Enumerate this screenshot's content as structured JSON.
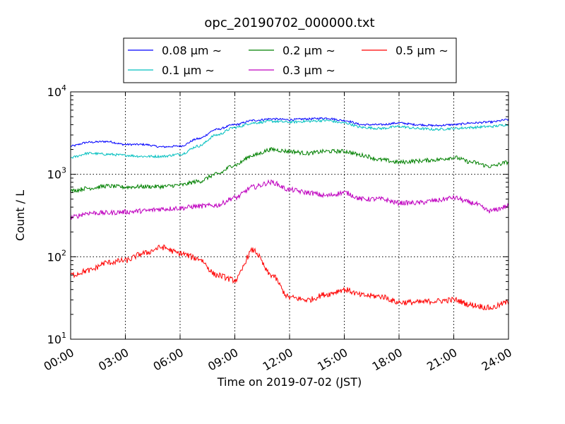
{
  "chart_data": {
    "type": "line",
    "title": "opc_20190702_000000.txt",
    "xlabel": "Time on 2019-07-02 (JST)",
    "ylabel": "Count / L",
    "yscale": "log",
    "ylim": [
      10,
      10000
    ],
    "xlim": [
      "00:00",
      "24:00"
    ],
    "grid": true,
    "legend_placement": "top",
    "x_ticks": [
      "00:00",
      "03:00",
      "06:00",
      "09:00",
      "12:00",
      "15:00",
      "18:00",
      "21:00",
      "24:00"
    ],
    "y_ticks": [
      {
        "base": "10",
        "exp": "1"
      },
      {
        "base": "10",
        "exp": "2"
      },
      {
        "base": "10",
        "exp": "3"
      },
      {
        "base": "10",
        "exp": "4"
      }
    ],
    "x": [
      "00:00",
      "01:00",
      "02:00",
      "03:00",
      "04:00",
      "05:00",
      "06:00",
      "07:00",
      "08:00",
      "09:00",
      "10:00",
      "11:00",
      "12:00",
      "13:00",
      "14:00",
      "15:00",
      "16:00",
      "17:00",
      "18:00",
      "19:00",
      "20:00",
      "21:00",
      "22:00",
      "23:00",
      "24:00"
    ],
    "series": [
      {
        "name": "0.08 μm ∼",
        "color": "#0000ff",
        "values": [
          2200,
          2450,
          2500,
          2300,
          2300,
          2150,
          2200,
          2700,
          3500,
          4000,
          4500,
          4700,
          4600,
          4700,
          4800,
          4500,
          4000,
          4000,
          4200,
          4000,
          3900,
          4000,
          4200,
          4300,
          4600
        ]
      },
      {
        "name": "0.1 μm ∼",
        "color": "#00bfbf",
        "values": [
          1600,
          1800,
          1750,
          1700,
          1650,
          1650,
          1750,
          2200,
          3000,
          3700,
          4200,
          4400,
          4300,
          4400,
          4500,
          4200,
          3700,
          3600,
          3800,
          3600,
          3500,
          3600,
          3700,
          3800,
          4000
        ]
      },
      {
        "name": "0.2 μm ∼",
        "color": "#008000",
        "values": [
          630,
          680,
          720,
          700,
          710,
          710,
          740,
          820,
          1000,
          1300,
          1700,
          2000,
          1900,
          1800,
          1900,
          1900,
          1700,
          1500,
          1400,
          1450,
          1500,
          1600,
          1400,
          1250,
          1400
        ]
      },
      {
        "name": "0.3 μm ∼",
        "color": "#bf00bf",
        "values": [
          300,
          340,
          340,
          350,
          360,
          380,
          390,
          410,
          420,
          520,
          700,
          800,
          650,
          600,
          550,
          600,
          500,
          500,
          450,
          450,
          480,
          520,
          450,
          360,
          410
        ]
      },
      {
        "name": "0.5 μm ∼",
        "color": "#ff0000",
        "values": [
          60,
          68,
          85,
          90,
          110,
          130,
          110,
          95,
          60,
          52,
          120,
          60,
          32,
          30,
          35,
          40,
          34,
          33,
          28,
          28,
          29,
          30,
          26,
          24,
          28
        ]
      }
    ]
  }
}
